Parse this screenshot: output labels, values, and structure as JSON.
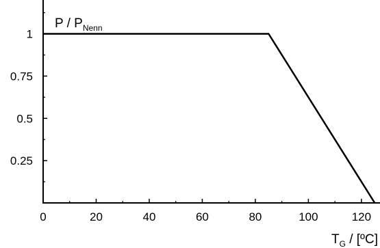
{
  "chart_data": {
    "type": "line",
    "title": "",
    "ylabel": {
      "main": "P / P",
      "sub": "Nenn"
    },
    "xlabel": {
      "pre": "T",
      "sub": "G",
      "post": " / [ºC]"
    },
    "xlim": [
      0,
      127
    ],
    "ylim": [
      0,
      1.2
    ],
    "x_ticks": [
      0,
      20,
      40,
      60,
      80,
      100,
      120
    ],
    "x_tick_labels": [
      "0",
      "20",
      "40",
      "60",
      "80",
      "100",
      "120"
    ],
    "x_minor_ticks": [
      10,
      30,
      50,
      70,
      90,
      110
    ],
    "y_ticks": [
      0.25,
      0.5,
      0.75,
      1
    ],
    "y_tick_labels": [
      "0.25",
      "0.5",
      "0.75",
      "1"
    ],
    "y_minor_ticks": [
      0.125,
      0.375,
      0.625,
      0.875,
      1.125
    ],
    "grid": false,
    "series": [
      {
        "x": [
          0,
          85,
          125
        ],
        "y": [
          1,
          1,
          0
        ]
      }
    ],
    "colors": {
      "line": "#000000",
      "axis": "#000000"
    }
  }
}
